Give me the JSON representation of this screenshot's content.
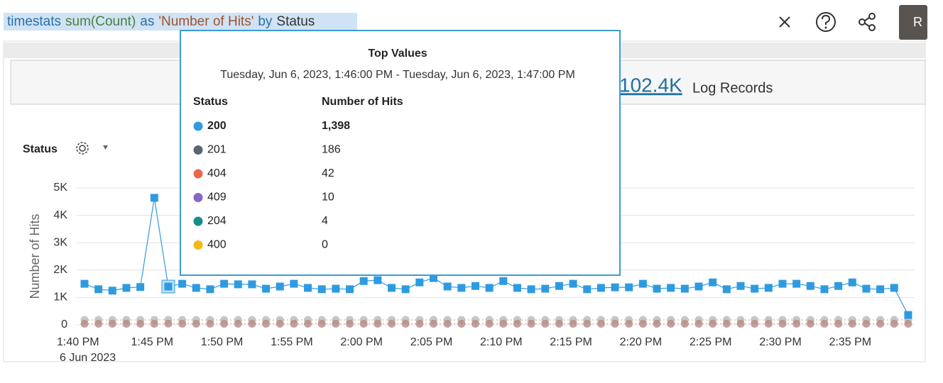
{
  "query": [
    {
      "text": "timestats",
      "color": "#2a6fa8"
    },
    {
      "text": "sum(Count)",
      "color": "#4a7f3a"
    },
    {
      "text": "as",
      "color": "#2a6fa8"
    },
    {
      "text": "'Number of Hits'",
      "color": "#a0522d"
    },
    {
      "text": "by",
      "color": "#2a6fa8"
    },
    {
      "text": "Status",
      "color": "#333333"
    }
  ],
  "run_button": "R",
  "summary": {
    "count": "102.4K",
    "label": "Log Records"
  },
  "field_label": "Status",
  "tooltip": {
    "title": "Top Values",
    "range": "Tuesday, Jun 6, 2023, 1:46:00 PM - Tuesday, Jun 6, 2023, 1:47:00 PM",
    "columns": [
      "Status",
      "Number of Hits"
    ],
    "rows": [
      {
        "status": "200",
        "hits": "1,398",
        "color": "#2e9be0"
      },
      {
        "status": "201",
        "hits": "186",
        "color": "#5b6472"
      },
      {
        "status": "404",
        "hits": "42",
        "color": "#e8694a"
      },
      {
        "status": "409",
        "hits": "10",
        "color": "#8a63c7"
      },
      {
        "status": "204",
        "hits": "4",
        "color": "#168c8c"
      },
      {
        "status": "400",
        "hits": "0",
        "color": "#f2b815"
      }
    ]
  },
  "chart_data": {
    "type": "line",
    "y_label": "Number of Hits",
    "date_label": "6 Jun 2023",
    "categories": [
      "1:40 PM",
      null,
      null,
      null,
      null,
      "1:45 PM",
      null,
      null,
      null,
      null,
      "1:50 PM",
      null,
      null,
      null,
      null,
      "1:55 PM",
      null,
      null,
      null,
      null,
      "2:00 PM",
      null,
      null,
      null,
      null,
      "2:05 PM",
      null,
      null,
      null,
      null,
      "2:10 PM",
      null,
      null,
      null,
      null,
      "2:15 PM",
      null,
      null,
      null,
      null,
      "2:20 PM",
      null,
      null,
      null,
      null,
      "2:25 PM",
      null,
      null,
      null,
      null,
      "2:30 PM",
      null,
      null,
      null,
      null,
      "2:35 PM",
      null,
      null,
      null,
      null
    ],
    "ylim": [
      0,
      5000
    ],
    "yticks": [
      0,
      {
        "value": 1000,
        "label": "1K"
      },
      {
        "value": 2000,
        "label": "2K"
      },
      {
        "value": 3000,
        "label": "3K"
      },
      {
        "value": 4000,
        "label": "4K"
      },
      {
        "value": 5000,
        "label": "5K"
      }
    ],
    "grid": true,
    "series": [
      {
        "name": "201",
        "color": "#b9b9b9",
        "marker": "circle",
        "values": [
          180,
          180,
          180,
          180,
          180,
          180,
          186,
          180,
          180,
          180,
          180,
          180,
          180,
          180,
          180,
          180,
          180,
          180,
          180,
          180,
          180,
          180,
          180,
          180,
          180,
          180,
          180,
          180,
          180,
          180,
          180,
          180,
          180,
          180,
          180,
          180,
          180,
          180,
          180,
          180,
          180,
          180,
          180,
          180,
          180,
          180,
          180,
          180,
          180,
          180,
          180,
          180,
          180,
          180,
          180,
          180,
          180,
          180,
          180,
          180
        ]
      },
      {
        "name": "404",
        "color": "#b58a80",
        "marker": "circle",
        "values": [
          40,
          40,
          40,
          40,
          40,
          40,
          42,
          40,
          40,
          40,
          40,
          40,
          40,
          40,
          40,
          40,
          40,
          40,
          40,
          40,
          40,
          40,
          40,
          40,
          40,
          40,
          40,
          40,
          40,
          40,
          40,
          40,
          40,
          40,
          40,
          40,
          40,
          40,
          40,
          40,
          40,
          40,
          40,
          40,
          40,
          40,
          40,
          40,
          40,
          40,
          40,
          40,
          40,
          40,
          40,
          40,
          40,
          40,
          40,
          40
        ]
      },
      {
        "name": "200",
        "color": "#2e9be0",
        "marker": "square",
        "values": [
          1500,
          1300,
          1250,
          1350,
          1380,
          4640,
          1398,
          1500,
          1350,
          1300,
          1500,
          1480,
          1480,
          1320,
          1400,
          1500,
          1350,
          1300,
          1320,
          1300,
          1600,
          1630,
          1350,
          1300,
          1550,
          1710,
          1400,
          1350,
          1420,
          1350,
          1600,
          1350,
          1300,
          1320,
          1420,
          1500,
          1300,
          1350,
          1370,
          1370,
          1500,
          1320,
          1350,
          1320,
          1400,
          1550,
          1300,
          1420,
          1320,
          1350,
          1500,
          1500,
          1420,
          1300,
          1420,
          1550,
          1320,
          1300,
          1350,
          360
        ]
      }
    ]
  }
}
